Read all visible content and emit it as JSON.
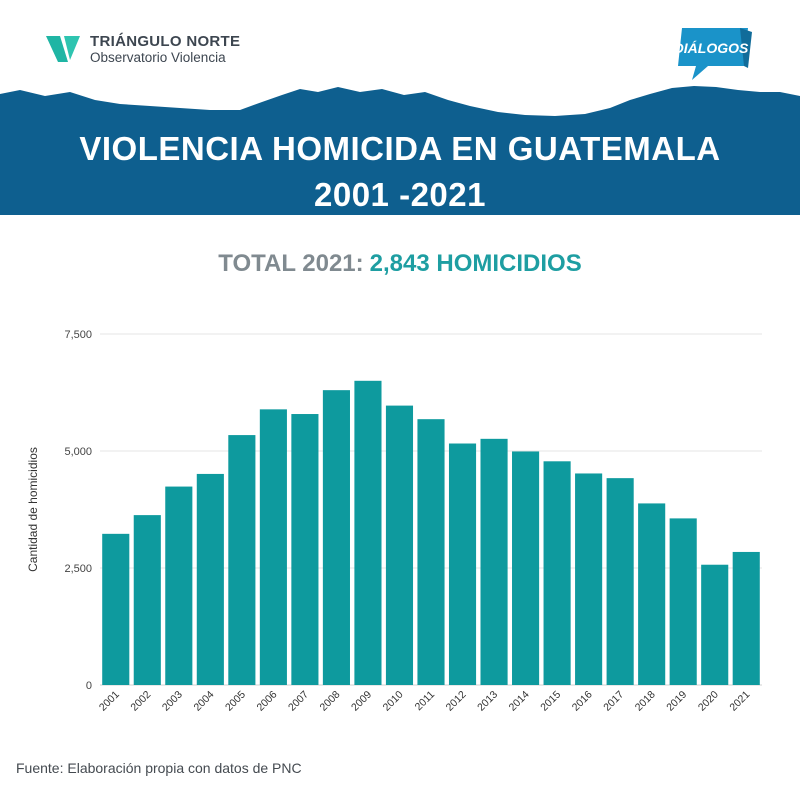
{
  "brand": {
    "name": "TRIÁNGULO NORTE",
    "subtitle": "Observatorio Violencia",
    "partner": "DIÁLOGOS"
  },
  "title": {
    "line1": "VIOLENCIA HOMICIDA EN GUATEMALA",
    "line2": "2001 -2021"
  },
  "total": {
    "label": "TOTAL 2021:",
    "value": "2,843 HOMICIDIOS"
  },
  "chart_data": {
    "type": "bar",
    "categories": [
      "2001",
      "2002",
      "2003",
      "2004",
      "2005",
      "2006",
      "2007",
      "2008",
      "2009",
      "2010",
      "2011",
      "2012",
      "2013",
      "2014",
      "2015",
      "2016",
      "2017",
      "2018",
      "2019",
      "2020",
      "2021"
    ],
    "values": [
      3230,
      3630,
      4240,
      4510,
      5340,
      5890,
      5790,
      6300,
      6500,
      5970,
      5680,
      5160,
      5260,
      4990,
      4780,
      4520,
      4420,
      3880,
      3560,
      2570,
      2843
    ],
    "ylabel": "Cantidad de homicidios",
    "xlabel": "",
    "ylim": [
      0,
      7500
    ],
    "yticks": [
      0,
      2500,
      5000,
      7500
    ],
    "ytick_labels": [
      "0",
      "2,500",
      "5,000",
      "7,500"
    ],
    "grid": true,
    "bar_color": "#0e9a9e"
  },
  "colors": {
    "banner": "#0e5f8f",
    "accent": "#1e9ea2",
    "muted": "#808a90"
  },
  "footer": {
    "source": "Fuente: Elaboración propia con datos de PNC"
  }
}
